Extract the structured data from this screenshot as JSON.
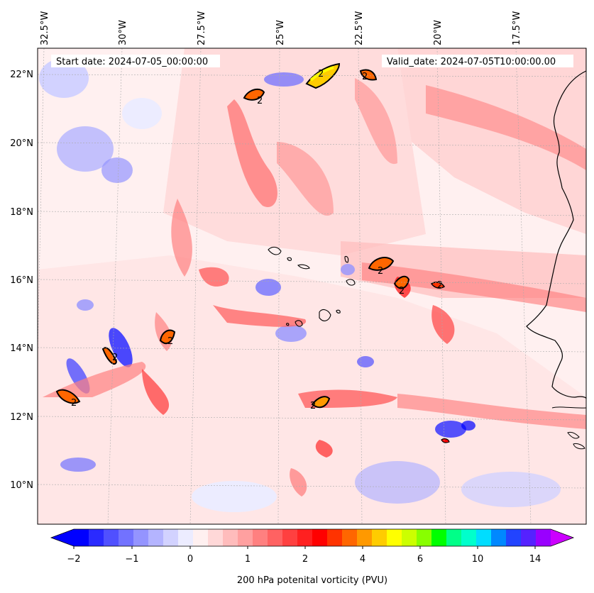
{
  "map": {
    "start_label": "Start date: 2024-07-05_00:00:00",
    "valid_label": "Valid_date: 2024-07-05T10:00:00.00",
    "longitude_labels": [
      "32.5°W",
      "30°W",
      "27.5°W",
      "25°W",
      "22.5°W",
      "20°W",
      "17.5°W"
    ],
    "latitude_labels": [
      "22°N",
      "20°N",
      "18°N",
      "16°N",
      "14°N",
      "12°N",
      "10°N"
    ],
    "contour_label": "2"
  },
  "colorbar": {
    "label": "200 hPa potenital vorticity (PVU)",
    "tick_labels": [
      "−2",
      "−1",
      "0",
      "1",
      "2",
      "4",
      "6",
      "10",
      "14"
    ],
    "colors": [
      "#0000ff",
      "#2a2aff",
      "#5050ff",
      "#7272ff",
      "#9494ff",
      "#b4b4ff",
      "#d2d2ff",
      "#ececff",
      "#fff0f0",
      "#ffd8d8",
      "#ffbcbc",
      "#ffa0a0",
      "#ff8080",
      "#ff6262",
      "#ff4040",
      "#ff2020",
      "#ff0000",
      "#ff3300",
      "#ff6600",
      "#ff9900",
      "#ffcc00",
      "#ffff00",
      "#ccff00",
      "#88ff00",
      "#00ff00",
      "#00ff88",
      "#00ffcc",
      "#00ddff",
      "#0088ff",
      "#2244ff",
      "#5522ff",
      "#9900ff"
    ],
    "extend_low_color": "#0000ff",
    "extend_high_color": "#cc00ff"
  }
}
